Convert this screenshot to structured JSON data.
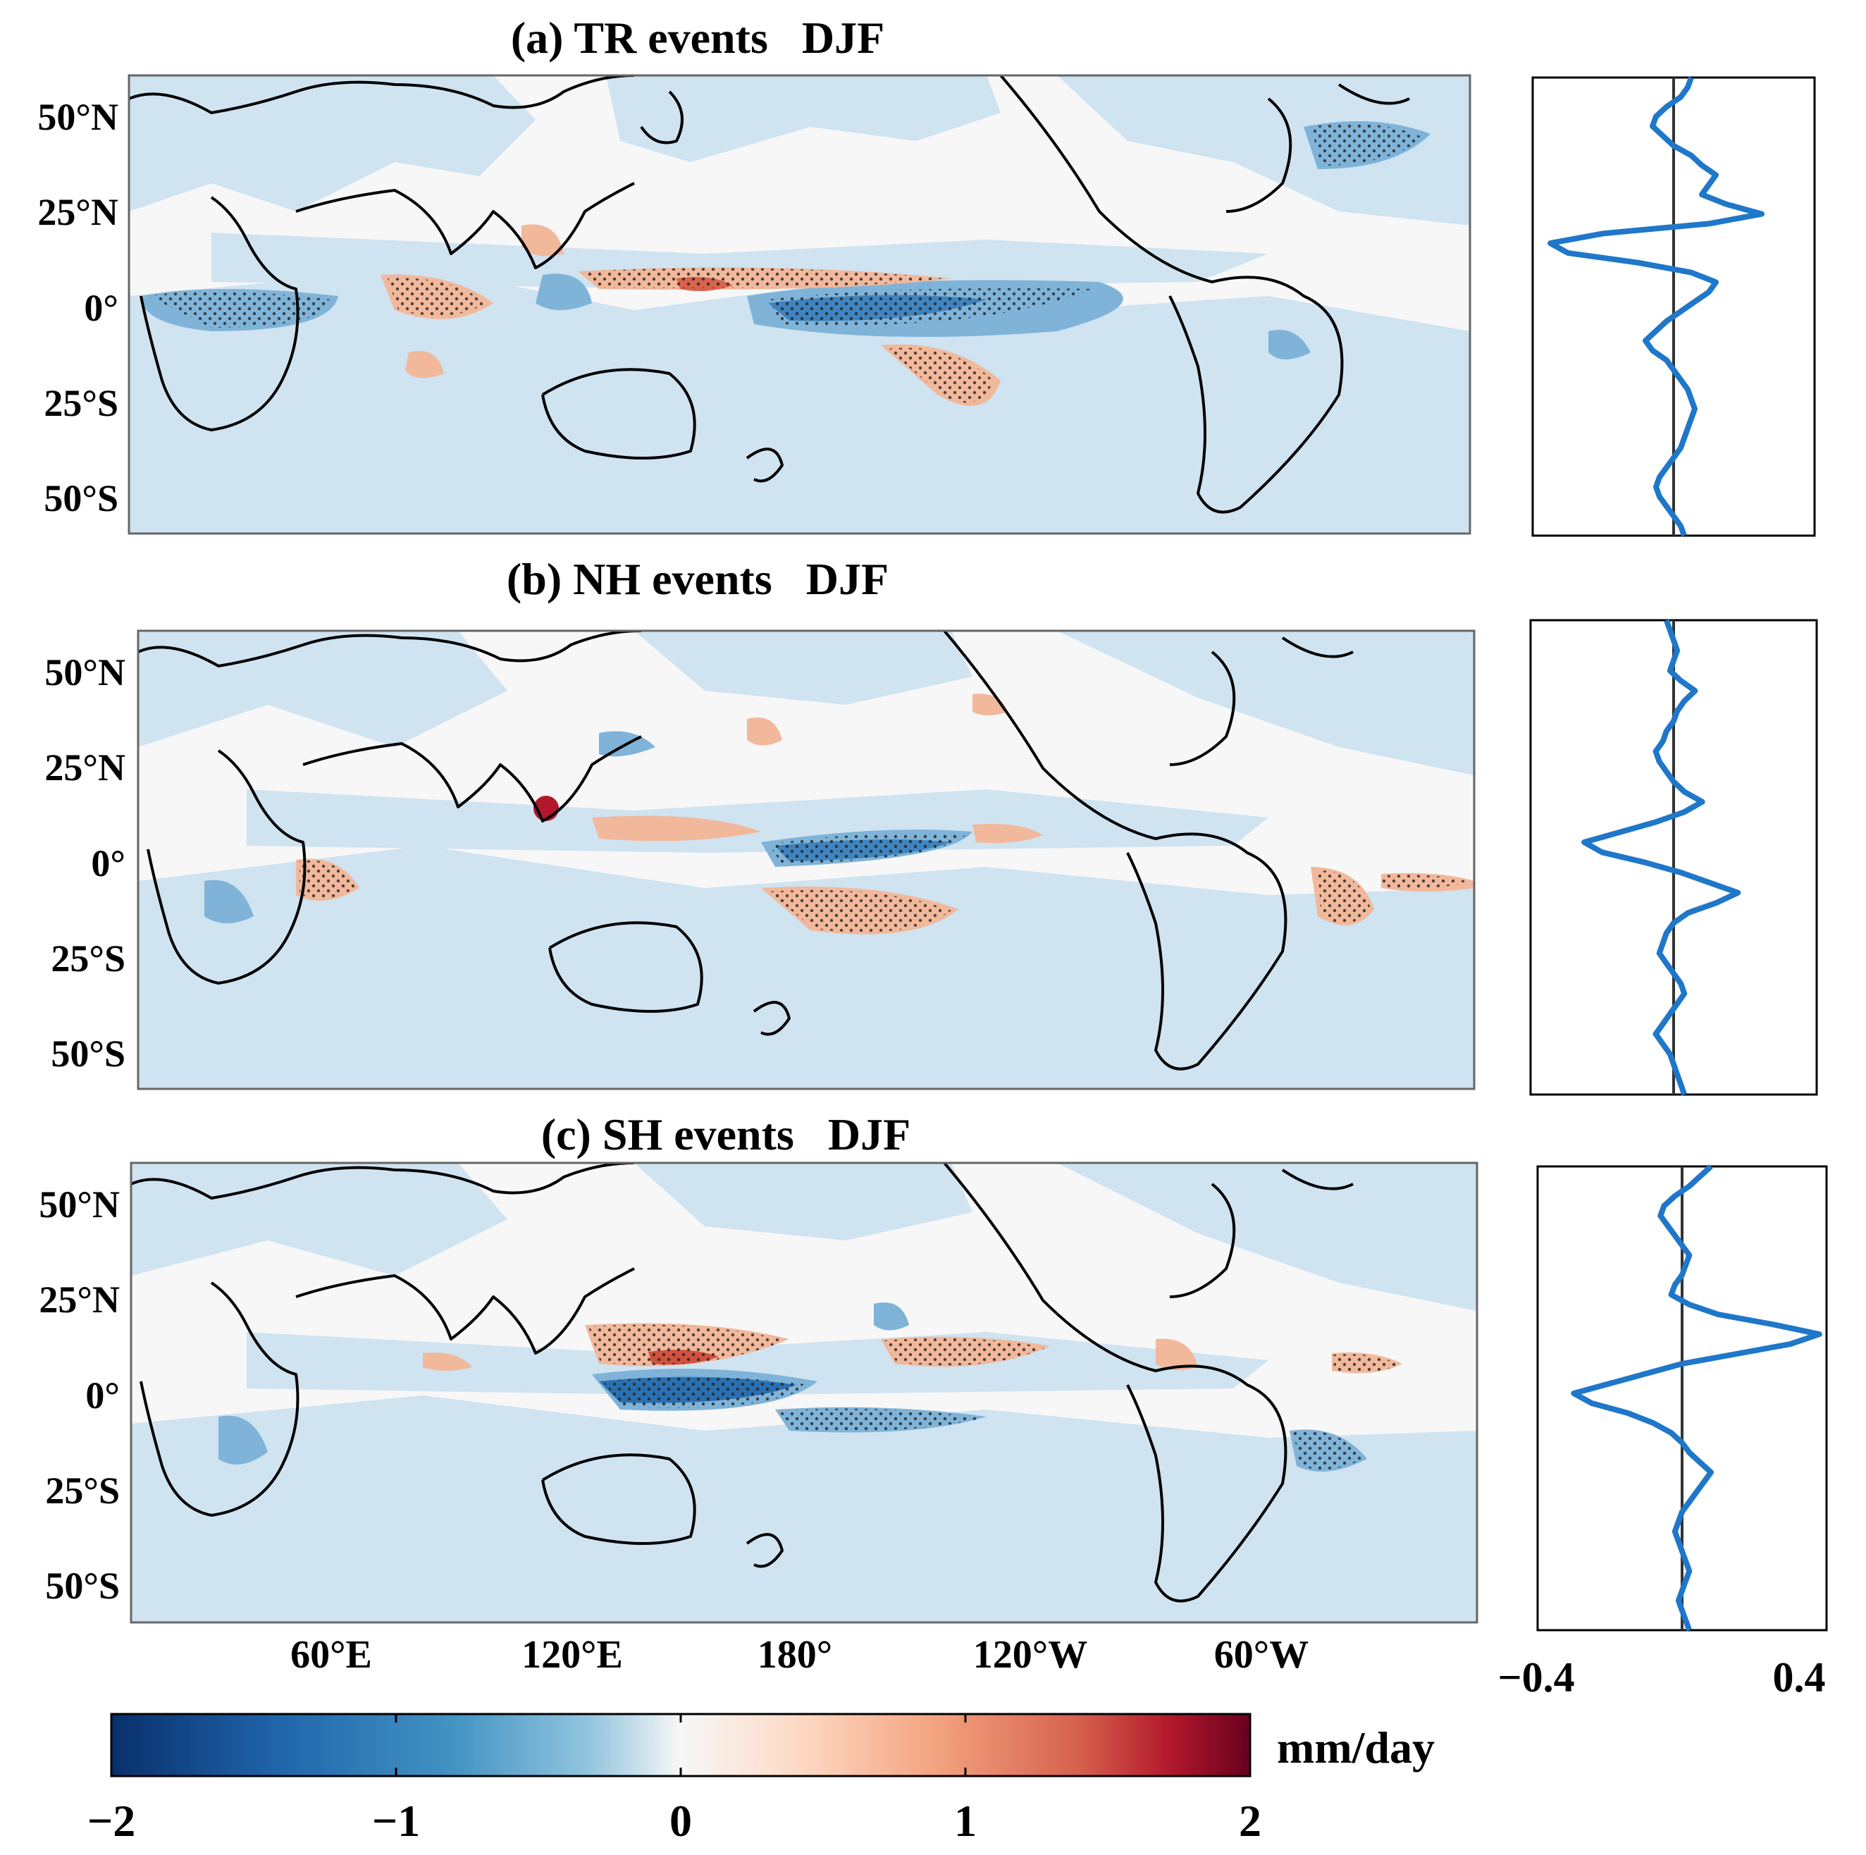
{
  "figure": {
    "panels": [
      {
        "id": "a",
        "title": "(a) TR events   DJF",
        "profile": [
          0.05,
          0.04,
          0.02,
          -0.02,
          -0.05,
          -0.06,
          -0.03,
          0.0,
          0.05,
          0.08,
          0.12,
          0.1,
          0.08,
          0.15,
          0.25,
          0.1,
          -0.2,
          -0.35,
          -0.3,
          -0.1,
          0.05,
          0.12,
          0.1,
          0.06,
          0.02,
          -0.02,
          -0.05,
          -0.08,
          -0.06,
          -0.02,
          0.0,
          0.02,
          0.04,
          0.05,
          0.06,
          0.05,
          0.04,
          0.03,
          0.02,
          0.0,
          -0.02,
          -0.04,
          -0.05,
          -0.04,
          -0.02,
          0.0,
          0.02,
          0.03
        ]
      },
      {
        "id": "b",
        "title": "(b) NH events   DJF",
        "profile": [
          -0.02,
          -0.01,
          0.0,
          0.01,
          0.0,
          -0.01,
          0.02,
          0.06,
          0.03,
          0.01,
          0.0,
          -0.02,
          -0.03,
          -0.05,
          -0.04,
          -0.02,
          0.0,
          0.03,
          0.08,
          0.03,
          -0.05,
          -0.15,
          -0.25,
          -0.2,
          -0.08,
          0.02,
          0.1,
          0.18,
          0.12,
          0.04,
          0.0,
          -0.02,
          -0.03,
          -0.04,
          -0.02,
          0.0,
          0.02,
          0.03,
          0.01,
          -0.01,
          -0.03,
          -0.05,
          -0.03,
          -0.01,
          0.0,
          0.01,
          0.02,
          0.03
        ]
      },
      {
        "id": "c",
        "title": "(c) SH events   DJF",
        "profile": [
          0.08,
          0.05,
          0.02,
          -0.02,
          -0.05,
          -0.06,
          -0.04,
          -0.02,
          0.0,
          0.02,
          0.01,
          0.0,
          -0.02,
          -0.03,
          0.02,
          0.1,
          0.25,
          0.38,
          0.3,
          0.15,
          0.0,
          -0.1,
          -0.2,
          -0.3,
          -0.25,
          -0.15,
          -0.08,
          -0.03,
          0.0,
          0.02,
          0.05,
          0.08,
          0.06,
          0.04,
          0.02,
          0.0,
          -0.01,
          -0.02,
          -0.01,
          0.0,
          0.01,
          0.02,
          0.01,
          0.0,
          -0.01,
          0.0,
          0.01,
          0.02
        ]
      }
    ],
    "lat_labels": [
      "50°N",
      "25°N",
      "0°",
      "25°S",
      "50°S"
    ],
    "lon_labels": [
      "60°E",
      "120°E",
      "180°",
      "120°W",
      "60°W"
    ],
    "profile_axis": {
      "min_label": "−0.4",
      "max_label": "0.4",
      "xlim": [
        -0.4,
        0.4
      ]
    },
    "colorbar": {
      "ticks": [
        "−2",
        "−1",
        "0",
        "1",
        "2"
      ],
      "range": [
        -2,
        2
      ],
      "unit": "mm/day",
      "colors": [
        "#08306b",
        "#2166ac",
        "#4393c3",
        "#92c5de",
        "#d1e5f0",
        "#f7f7f7",
        "#fddbc7",
        "#f4a582",
        "#d6604d",
        "#b2182b",
        "#67001f"
      ]
    },
    "colors": {
      "negative_light": "#cfe3f1",
      "negative_mid": "#7fb3d8",
      "negative_dark": "#2166ac",
      "positive_light": "#f4c2a8",
      "positive_dark": "#c8402f",
      "background": "#f7f7f7",
      "coast": "#000000",
      "profile_line": "#1f77c9"
    }
  }
}
